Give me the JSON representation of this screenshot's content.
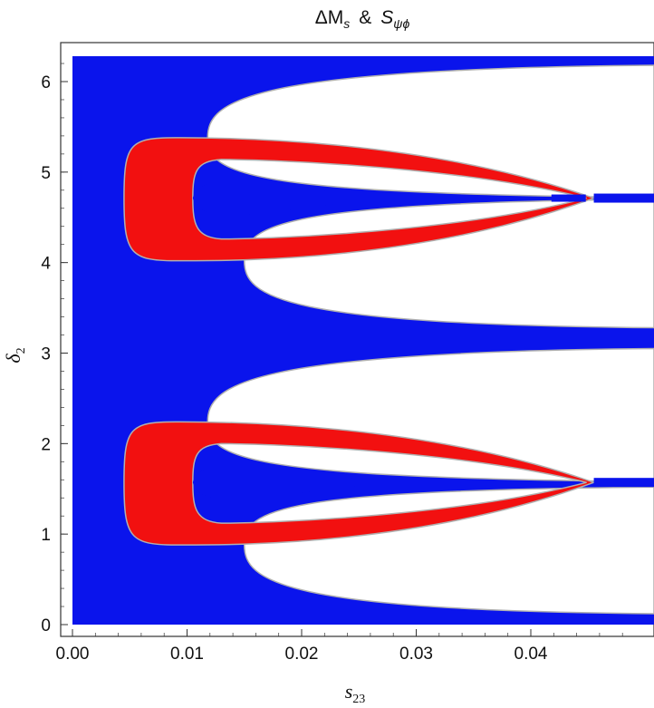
{
  "chart_data": {
    "type": "region",
    "title": "ΔMs & Sψϕ",
    "title_parts": {
      "a": "ΔM",
      "a_sub": "s",
      "amp": "&",
      "b": "S",
      "b_sub": "ψϕ"
    },
    "xlabel": "s23",
    "xlabel_parts": {
      "main": "s",
      "sub": "23"
    },
    "ylabel": "δ2",
    "ylabel_parts": {
      "main": "δ",
      "sub": "2"
    },
    "xlim": [
      0,
      0.0485
    ],
    "ylim": [
      0,
      6.2832
    ],
    "xticks": [
      "0.00",
      "0.01",
      "0.02",
      "0.03",
      "0.04"
    ],
    "yticks": [
      "0",
      "1",
      "2",
      "3",
      "4",
      "5",
      "6"
    ],
    "colors": {
      "region_a": "#0a14ec",
      "region_b": "#f21010",
      "boundary": "#b0b0b0",
      "frame": "#333333"
    },
    "regions": [
      {
        "name": "",
        "color_key": "region_a",
        "description_free": true,
        "holes": [
          {
            "center_y": 1.5708,
            "tip_x": 0.0118,
            "open_half_height_at_xmax": 1.45,
            "shape": "upper lobe 1.6–3.0 and lower lobe 0.1–1.45 (top), 3.3–4.5 and 4.9–6.2"
          }
        ]
      },
      {
        "name": "",
        "color_key": "region_b",
        "bands": [
          {
            "center_y": 1.5708,
            "left_x": 0.0045,
            "inner_left_x": 0.0105,
            "right_x": 0.0455,
            "y_min": 0.88,
            "y_max": 2.24
          },
          {
            "center_y": 4.7124,
            "left_x": 0.0045,
            "inner_left_x": 0.0105,
            "right_x": 0.0455,
            "y_min": 4.02,
            "y_max": 5.38
          }
        ]
      }
    ],
    "grid": false,
    "legend": "none"
  }
}
